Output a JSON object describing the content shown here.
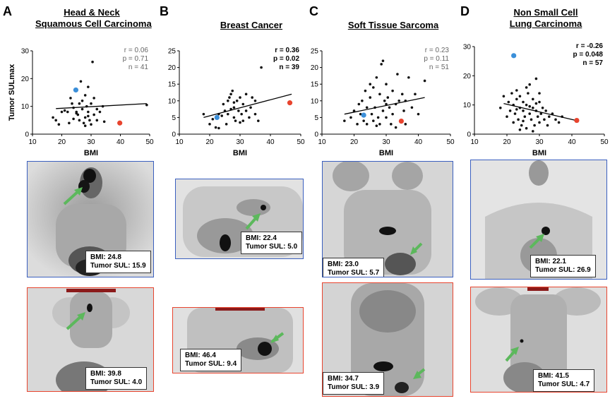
{
  "panels": [
    {
      "letter": "A",
      "title_lines": [
        "Head & Neck",
        "Squamous Cell Carcinoma"
      ],
      "stats": {
        "r": "r = 0.06",
        "p": "p = 0.71",
        "n": "n = 41"
      },
      "blue_scan": {
        "bmi": "BMI: 24.8",
        "sul": "Tumor SUL: 15.9"
      },
      "red_scan": {
        "bmi": "BMI: 39.8",
        "sul": "Tumor SUL: 4.0"
      }
    },
    {
      "letter": "B",
      "title_lines": [
        "Breast Cancer"
      ],
      "stats": {
        "r": "r = 0.36",
        "p": "p = 0.02",
        "n": "n = 39"
      },
      "blue_scan": {
        "bmi": "BMI: 22.4",
        "sul": "Tumor SUL: 5.0"
      },
      "red_scan": {
        "bmi": "BMI: 46.4",
        "sul": "Tumor SUL: 9.4"
      }
    },
    {
      "letter": "C",
      "title_lines": [
        "Soft Tissue Sarcoma"
      ],
      "stats": {
        "r": "r = 0.23",
        "p": "p = 0.11",
        "n": "n = 51"
      },
      "blue_scan": {
        "bmi": "BMI: 23.0",
        "sul": "Tumor SUL: 5.7"
      },
      "red_scan": {
        "bmi": "BMI: 34.7",
        "sul": "Tumor SUL: 3.9"
      }
    },
    {
      "letter": "D",
      "title_lines": [
        "Non Small Cell",
        "Lung Carcinoma"
      ],
      "stats": {
        "r": "r = -0.26",
        "p": "p = 0.048",
        "n": "n = 57"
      },
      "blue_scan": {
        "bmi": "BMI: 22.1",
        "sul": "Tumor SUL: 26.9"
      },
      "red_scan": {
        "bmi": "BMI: 41.5",
        "sul": "Tumor SUL: 4.7"
      }
    }
  ],
  "colors": {
    "highlight_low_bmi": "#3b8fd9",
    "highlight_high_bmi": "#e8442e",
    "point": "#111111"
  },
  "chart_data": [
    {
      "type": "scatter",
      "xlabel": "BMI",
      "ylabel": "Tumor SULmax",
      "xlim": [
        10,
        50
      ],
      "ylim": [
        0,
        30
      ],
      "xticks": [
        10,
        20,
        30,
        40,
        50
      ],
      "yticks": [
        0,
        10,
        20,
        30
      ],
      "points": [
        [
          17,
          6
        ],
        [
          18,
          5
        ],
        [
          19,
          3.5
        ],
        [
          20,
          8
        ],
        [
          21,
          8.5
        ],
        [
          22,
          8
        ],
        [
          22.5,
          4
        ],
        [
          23,
          13
        ],
        [
          23.5,
          11
        ],
        [
          24,
          9.5
        ],
        [
          25,
          8
        ],
        [
          25.5,
          7
        ],
        [
          26,
          5
        ],
        [
          26,
          11
        ],
        [
          27,
          12
        ],
        [
          27,
          9
        ],
        [
          27.5,
          4
        ],
        [
          28,
          14
        ],
        [
          28,
          6
        ],
        [
          28.5,
          10
        ],
        [
          29,
          8
        ],
        [
          29,
          17
        ],
        [
          29.5,
          5
        ],
        [
          30,
          11
        ],
        [
          30,
          3.5
        ],
        [
          30.5,
          26
        ],
        [
          31,
          7
        ],
        [
          31,
          13
        ],
        [
          32,
          9
        ],
        [
          32,
          5
        ],
        [
          33,
          8
        ],
        [
          34,
          10
        ],
        [
          34.5,
          4.5
        ],
        [
          26.5,
          19
        ],
        [
          28,
          3
        ],
        [
          24,
          5.5
        ],
        [
          25,
          7.5
        ],
        [
          29,
          6.5
        ],
        [
          49,
          10.5
        ]
      ],
      "highlight_points": [
        {
          "x": 24.8,
          "y": 15.9,
          "color": "blue"
        },
        {
          "x": 39.8,
          "y": 4.0,
          "color": "red"
        }
      ],
      "fit_line": [
        [
          18,
          9.2
        ],
        [
          49,
          11
        ]
      ]
    },
    {
      "type": "scatter",
      "xlabel": "BMI",
      "ylabel": "",
      "xlim": [
        10,
        50
      ],
      "ylim": [
        0,
        25
      ],
      "xticks": [
        10,
        20,
        30,
        40,
        50
      ],
      "yticks": [
        0,
        5,
        10,
        15,
        20,
        25
      ],
      "points": [
        [
          18,
          6
        ],
        [
          20,
          3
        ],
        [
          21,
          4.5
        ],
        [
          22,
          2
        ],
        [
          23,
          1.8
        ],
        [
          23,
          6
        ],
        [
          24,
          5.5
        ],
        [
          24.5,
          9
        ],
        [
          25,
          7
        ],
        [
          25.5,
          3
        ],
        [
          26,
          6
        ],
        [
          26,
          10
        ],
        [
          27,
          7.5
        ],
        [
          27,
          12
        ],
        [
          27.5,
          13
        ],
        [
          28,
          5
        ],
        [
          28,
          8
        ],
        [
          28.5,
          4
        ],
        [
          29,
          10
        ],
        [
          29.5,
          7
        ],
        [
          30,
          11
        ],
        [
          30.5,
          6
        ],
        [
          31,
          4
        ],
        [
          31,
          9
        ],
        [
          32,
          7
        ],
        [
          32,
          12
        ],
        [
          33,
          5
        ],
        [
          33.5,
          8
        ],
        [
          34,
          11
        ],
        [
          35,
          6
        ],
        [
          35,
          10
        ],
        [
          36,
          4
        ],
        [
          37,
          20
        ],
        [
          30,
          3.5
        ],
        [
          26.5,
          11
        ],
        [
          28,
          9.5
        ]
      ],
      "highlight_points": [
        {
          "x": 22.4,
          "y": 5.0,
          "color": "blue"
        },
        {
          "x": 46.4,
          "y": 9.4,
          "color": "red"
        }
      ],
      "fit_line": [
        [
          18,
          5
        ],
        [
          47,
          12
        ]
      ]
    },
    {
      "type": "scatter",
      "xlabel": "BMI",
      "ylabel": "",
      "xlim": [
        10,
        50
      ],
      "ylim": [
        0,
        25
      ],
      "xticks": [
        10,
        20,
        30,
        40,
        50
      ],
      "yticks": [
        0,
        5,
        10,
        15,
        20,
        25
      ],
      "points": [
        [
          17,
          4
        ],
        [
          19,
          5
        ],
        [
          20,
          7
        ],
        [
          21,
          3
        ],
        [
          21.5,
          9
        ],
        [
          22,
          6
        ],
        [
          22.5,
          10
        ],
        [
          23,
          4
        ],
        [
          23.5,
          13
        ],
        [
          24,
          8
        ],
        [
          24,
          3
        ],
        [
          25,
          11
        ],
        [
          25.5,
          6
        ],
        [
          26,
          4
        ],
        [
          26,
          14
        ],
        [
          26.5,
          8
        ],
        [
          27,
          17
        ],
        [
          27.5,
          5
        ],
        [
          28,
          12
        ],
        [
          28,
          3
        ],
        [
          28.5,
          21
        ],
        [
          29,
          22
        ],
        [
          29,
          7
        ],
        [
          29.5,
          10
        ],
        [
          30,
          15
        ],
        [
          30,
          5
        ],
        [
          30.5,
          11
        ],
        [
          31,
          8
        ],
        [
          31.5,
          3
        ],
        [
          32,
          13
        ],
        [
          32,
          6
        ],
        [
          33,
          9
        ],
        [
          33.5,
          18
        ],
        [
          34,
          10
        ],
        [
          34.5,
          4
        ],
        [
          35,
          12
        ],
        [
          35.5,
          7
        ],
        [
          36,
          3
        ],
        [
          37,
          17
        ],
        [
          38,
          8
        ],
        [
          39,
          12
        ],
        [
          40,
          6
        ],
        [
          42,
          16
        ],
        [
          27,
          2.5
        ],
        [
          33,
          2
        ],
        [
          25,
          15
        ],
        [
          30,
          9
        ],
        [
          36,
          10
        ]
      ],
      "highlight_points": [
        {
          "x": 23.0,
          "y": 5.7,
          "color": "blue"
        },
        {
          "x": 34.7,
          "y": 3.9,
          "color": "red"
        }
      ],
      "fit_line": [
        [
          17,
          6
        ],
        [
          42,
          11
        ]
      ]
    },
    {
      "type": "scatter",
      "xlabel": "BMI",
      "ylabel": "",
      "xlim": [
        10,
        50
      ],
      "ylim": [
        0,
        30
      ],
      "xticks": [
        10,
        20,
        30,
        40,
        50
      ],
      "yticks": [
        0,
        10,
        20,
        30
      ],
      "points": [
        [
          18,
          9
        ],
        [
          19,
          13
        ],
        [
          20,
          6
        ],
        [
          20.5,
          11
        ],
        [
          21,
          8
        ],
        [
          21.5,
          14
        ],
        [
          22,
          4
        ],
        [
          22,
          10
        ],
        [
          22.5,
          7
        ],
        [
          23,
          12
        ],
        [
          23,
          15
        ],
        [
          23.5,
          5
        ],
        [
          24,
          9
        ],
        [
          24,
          13
        ],
        [
          24.5,
          3
        ],
        [
          25,
          8
        ],
        [
          25,
          11
        ],
        [
          25.5,
          6
        ],
        [
          26,
          10
        ],
        [
          26,
          2
        ],
        [
          26.5,
          14
        ],
        [
          27,
          7
        ],
        [
          27,
          17
        ],
        [
          27.5,
          5
        ],
        [
          28,
          9
        ],
        [
          28,
          12
        ],
        [
          28.5,
          3
        ],
        [
          29,
          19
        ],
        [
          29,
          8
        ],
        [
          29.5,
          6
        ],
        [
          30,
          11
        ],
        [
          30,
          4
        ],
        [
          30.5,
          7
        ],
        [
          31,
          9
        ],
        [
          31.5,
          5
        ],
        [
          32,
          8
        ],
        [
          32.5,
          3
        ],
        [
          33,
          6
        ],
        [
          34,
          7
        ],
        [
          35,
          5
        ],
        [
          36,
          4
        ],
        [
          37,
          6
        ],
        [
          24,
          1.5
        ],
        [
          26,
          16
        ],
        [
          27,
          9.5
        ],
        [
          28,
          1
        ],
        [
          30,
          14
        ],
        [
          23,
          8.5
        ],
        [
          25,
          4.5
        ],
        [
          29,
          10.5
        ]
      ],
      "highlight_points": [
        {
          "x": 22.1,
          "y": 26.9,
          "color": "blue"
        },
        {
          "x": 41.5,
          "y": 4.7,
          "color": "red"
        }
      ],
      "fit_line": [
        [
          19,
          10.5
        ],
        [
          42,
          4.5
        ]
      ]
    }
  ]
}
